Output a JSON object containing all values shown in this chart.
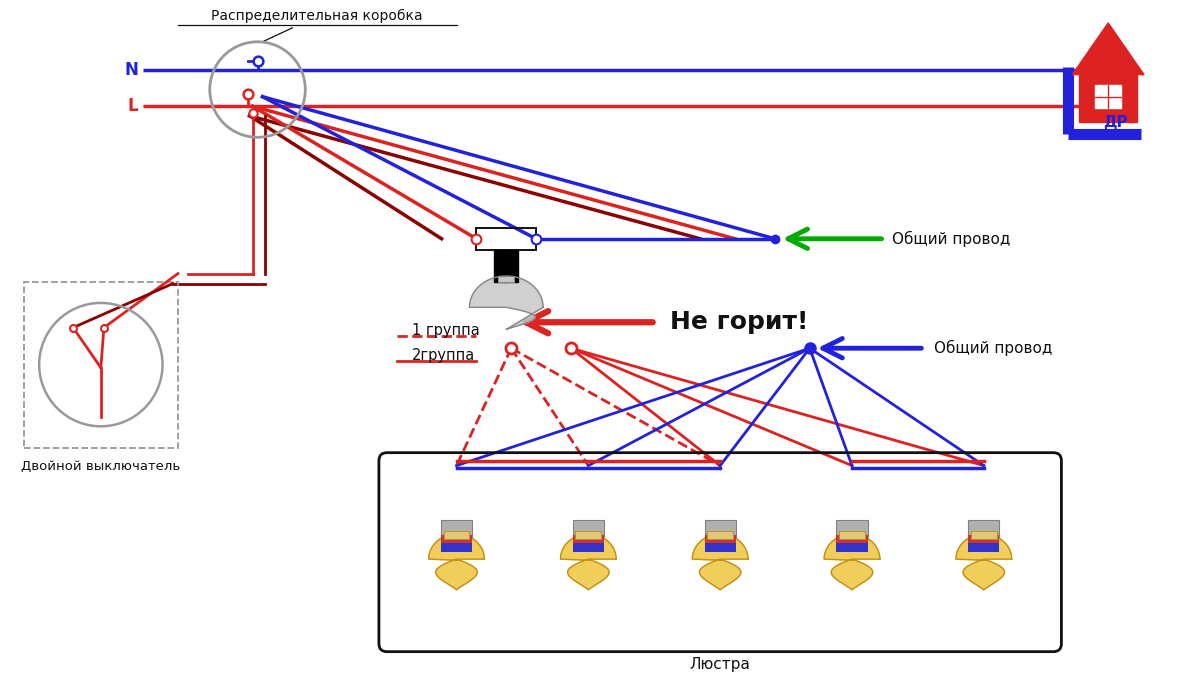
{
  "bg_color": "#ffffff",
  "title_text": "Распределительная коробка",
  "N_label": "N",
  "L_label": "L",
  "blue_color": "#2222dd",
  "red_color": "#dd2222",
  "dark_red_color": "#8b0000",
  "green_color": "#00aa00",
  "gray_color": "#999999",
  "black_color": "#111111",
  "ne_gorit_text": "Не горит!",
  "obshiy_provod_text": "Общий провод",
  "lyustra_text": "Люстра",
  "dvoynoj_text": "Двойной выключатель",
  "gruppa1_text": "1 группа",
  "gruppa2_text": "2группа",
  "figw": 12.0,
  "figh": 6.75,
  "xlim": [
    0,
    12
  ],
  "ylim": [
    0,
    6.75
  ]
}
